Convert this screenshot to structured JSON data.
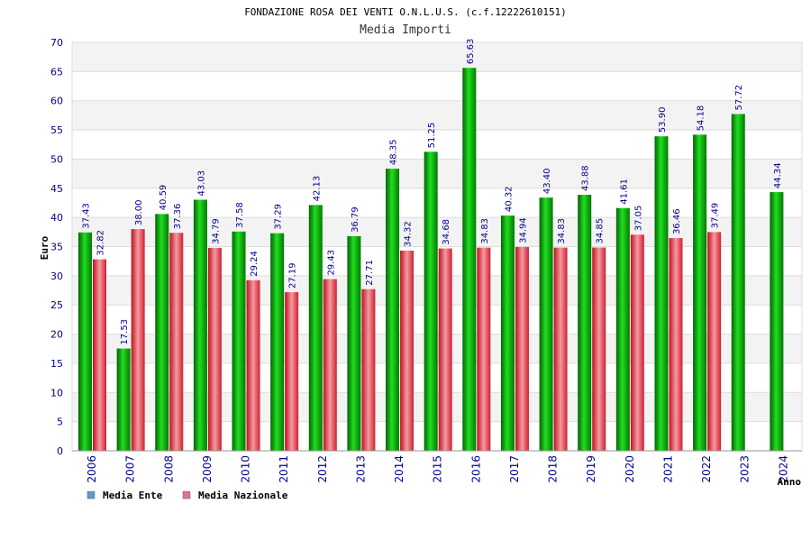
{
  "chart_data": {
    "type": "bar",
    "title": "FONDAZIONE ROSA DEI VENTI O.N.L.U.S. (c.f.12222610151)",
    "subtitle": "Media Importi",
    "xlabel": "Anno",
    "ylabel": "Euro",
    "ylim": [
      0,
      70
    ],
    "yticks": [
      0,
      5,
      10,
      15,
      20,
      25,
      30,
      35,
      40,
      45,
      50,
      55,
      60,
      65,
      70
    ],
    "grid": "horizontal bands",
    "legend_position": "bottom-left",
    "categories": [
      "2006",
      "2007",
      "2008",
      "2009",
      "2010",
      "2011",
      "2012",
      "2013",
      "2014",
      "2015",
      "2016",
      "2017",
      "2018",
      "2019",
      "2020",
      "2021",
      "2022",
      "2023",
      "2024"
    ],
    "series": [
      {
        "name": "Media Ente",
        "color": "#00a000",
        "legend_color": "#5b9bd5",
        "values": [
          37.43,
          17.53,
          40.59,
          43.03,
          37.58,
          37.29,
          42.13,
          36.79,
          48.35,
          51.25,
          65.63,
          40.32,
          43.4,
          43.88,
          41.61,
          53.9,
          54.18,
          57.72,
          44.34
        ],
        "labels": [
          "37.43",
          "17.53",
          "40.59",
          "43.03",
          "37.58",
          "37.29",
          "42.13",
          "36.79",
          "48.35",
          "51.25",
          "65.63",
          "40.32",
          "43.40",
          "43.88",
          "41.61",
          "53.90",
          "54.18",
          "57.72",
          "44.34"
        ]
      },
      {
        "name": "Media Nazionale",
        "color": "#e03040",
        "legend_color": "#e07090",
        "values": [
          32.82,
          38.0,
          37.36,
          34.79,
          29.24,
          27.19,
          29.43,
          27.71,
          34.32,
          34.68,
          34.83,
          34.94,
          34.83,
          34.85,
          37.05,
          36.46,
          37.49,
          null,
          null
        ],
        "labels": [
          "32.82",
          "38.00",
          "37.36",
          "34.79",
          "29.24",
          "27.19",
          "29.43",
          "27.71",
          "34.32",
          "34.68",
          "34.83",
          "34.94",
          "34.83",
          "34.85",
          "37.05",
          "36.46",
          "37.49",
          null,
          null
        ]
      }
    ]
  }
}
